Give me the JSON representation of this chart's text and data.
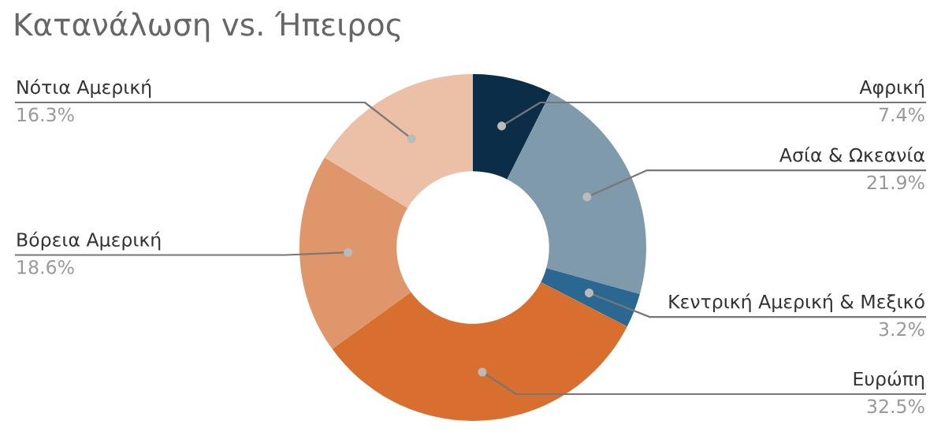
{
  "chart_data": {
    "type": "donut",
    "title": "Κατανάλωση vs. Ήπειρος",
    "categories": [
      "Αφρική",
      "Ασία & Ωκεανία",
      "Κεντρική Αμερική & Μεξικό",
      "Ευρώπη",
      "Βόρεια Αμερική",
      "Νότια Αμερική"
    ],
    "values": [
      7.4,
      21.9,
      3.2,
      32.5,
      18.6,
      16.3
    ],
    "value_labels": [
      "7.4%",
      "21.9%",
      "3.2%",
      "32.5%",
      "18.6%",
      "16.3%"
    ],
    "colors": [
      "#0b2d48",
      "#7e9aab",
      "#2a6892",
      "#d96f2e",
      "#df966a",
      "#ebc0a6"
    ],
    "legend": false
  }
}
